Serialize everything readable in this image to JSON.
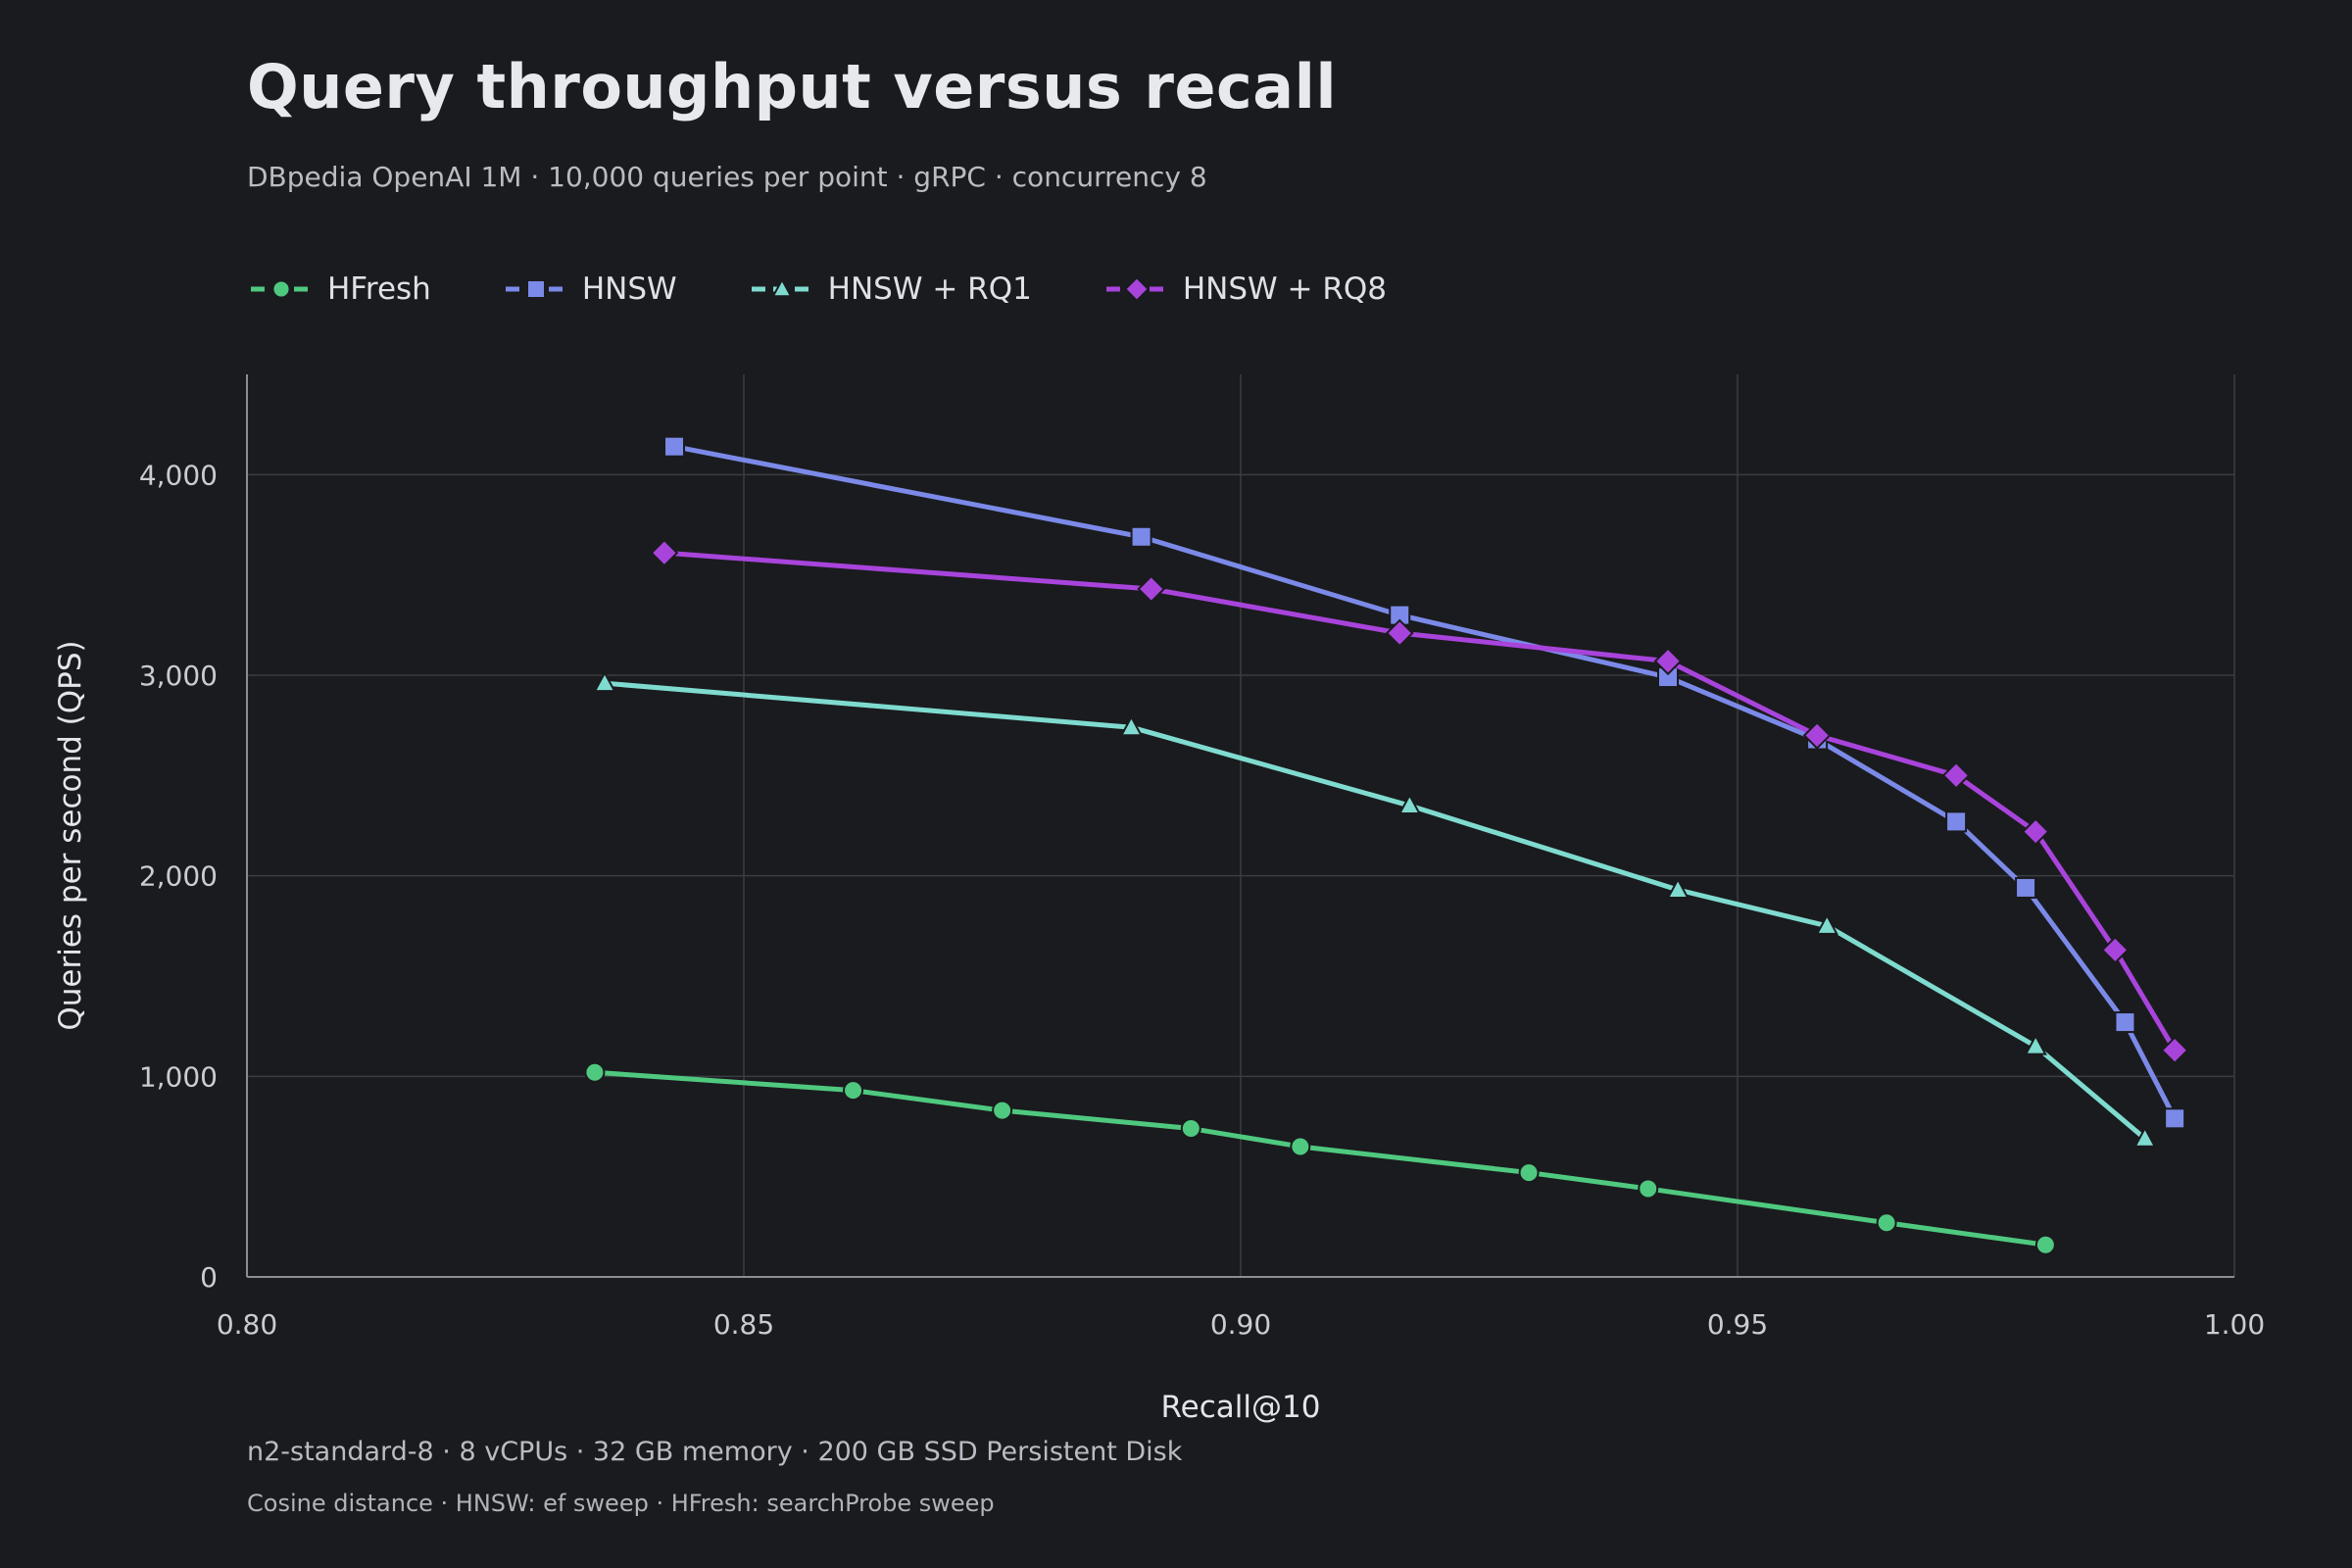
{
  "header": {
    "title": "Query throughput versus recall",
    "subtitle": "DBpedia OpenAI 1M  ·  10,000 queries per point  ·  gRPC  ·  concurrency 8"
  },
  "footer": {
    "line1": "n2-standard-8  ·  8 vCPUs  ·  32 GB memory  ·  200 GB SSD Persistent Disk",
    "line2": "Cosine distance  ·  HNSW: ef sweep  ·  HFresh: searchProbe sweep"
  },
  "colors": {
    "background": "#1a1b1e",
    "grid": "#3a3c41",
    "axis": "#8a8d94"
  },
  "chart_data": {
    "type": "line",
    "title": "Query throughput versus recall",
    "xlabel": "Recall@10",
    "ylabel": "Queries per second (QPS)",
    "xlim": [
      0.8,
      1.0
    ],
    "ylim": [
      0,
      4500
    ],
    "xticks": [
      0.8,
      0.85,
      0.9,
      0.95,
      1.0
    ],
    "xtick_labels": [
      "0.80",
      "0.85",
      "0.90",
      "0.95",
      "1.00"
    ],
    "yticks": [
      0,
      1000,
      2000,
      3000,
      4000
    ],
    "ytick_labels": [
      "0",
      "1,000",
      "2,000",
      "3,000",
      "4,000"
    ],
    "grid": true,
    "legend_position": "top-left",
    "series": [
      {
        "name": "HFresh",
        "color": "#4fc97f",
        "marker": "circle",
        "x": [
          0.835,
          0.861,
          0.876,
          0.895,
          0.906,
          0.929,
          0.941,
          0.965,
          0.981
        ],
        "y": [
          1020,
          930,
          830,
          740,
          650,
          520,
          440,
          270,
          160
        ]
      },
      {
        "name": "HNSW",
        "color": "#7b8ae8",
        "marker": "square",
        "x": [
          0.843,
          0.89,
          0.916,
          0.943,
          0.958,
          0.972,
          0.979,
          0.989,
          0.994
        ],
        "y": [
          4140,
          3690,
          3300,
          2990,
          2680,
          2270,
          1940,
          1270,
          790
        ]
      },
      {
        "name": "HNSW + RQ1",
        "color": "#7fdbcf",
        "marker": "triangle",
        "x": [
          0.836,
          0.889,
          0.917,
          0.944,
          0.959,
          0.98,
          0.991
        ],
        "y": [
          2960,
          2740,
          2350,
          1930,
          1750,
          1150,
          690
        ]
      },
      {
        "name": "HNSW + RQ8",
        "color": "#a844dc",
        "marker": "diamond",
        "x": [
          0.842,
          0.891,
          0.916,
          0.943,
          0.958,
          0.972,
          0.98,
          0.988,
          0.994
        ],
        "y": [
          3610,
          3430,
          3210,
          3070,
          2700,
          2500,
          2220,
          1630,
          1130
        ]
      }
    ]
  }
}
